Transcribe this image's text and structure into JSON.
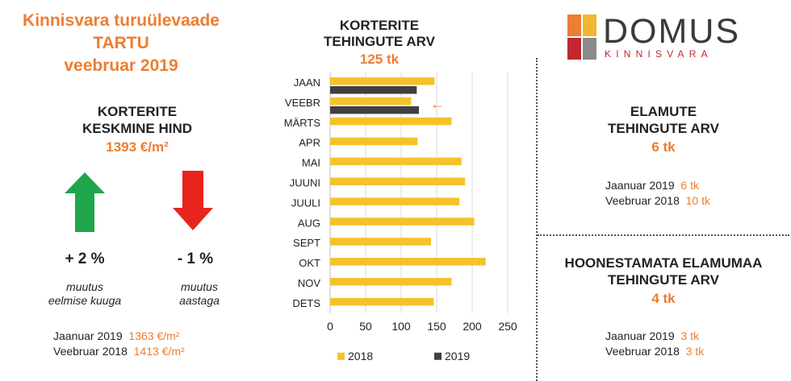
{
  "header": {
    "line1": "Kinnisvara turuülevaade",
    "line2": "TARTU",
    "line3": "veebruar 2019"
  },
  "avg_price": {
    "title_line1": "KORTERITE",
    "title_line2": "KESKMINE HIND",
    "value": "1393 €/m²",
    "monthly_change": "+ 2 %",
    "monthly_label_line1": "muutus",
    "monthly_label_line2": "eelmise kuuga",
    "yearly_change": "- 1 %",
    "yearly_label_line1": "muutus",
    "yearly_label_line2": "aastaga",
    "ref1_label": "Jaanuar 2019",
    "ref1_value": "1363 €/m²",
    "ref2_label": "Veebruar 2018",
    "ref2_value": "1413 €/m²",
    "colors": {
      "up": "#1fa64a",
      "down": "#e8251c"
    }
  },
  "apartments": {
    "title_line1": "KORTERITE",
    "title_line2": "TEHINGUTE ARV",
    "value": "125 tk"
  },
  "logo": {
    "name": "DOMUS",
    "sub": "KINNISVARA",
    "colors": [
      "#ed7d31",
      "#f2b632",
      "#c0282e",
      "#8a8a8a"
    ]
  },
  "houses": {
    "title_line1": "ELAMUTE",
    "title_line2": "TEHINGUTE ARV",
    "value": "6 tk",
    "ref1_label": "Jaanuar 2019",
    "ref1_value": "6 tk",
    "ref2_label": "Veebruar 2018",
    "ref2_value": "10 tk"
  },
  "land": {
    "title_line1": "HOONESTAMATA ELAMUMAA",
    "title_line2": "TEHINGUTE ARV",
    "value": "4 tk",
    "ref1_label": "Jaanuar 2019",
    "ref1_value": "3 tk",
    "ref2_label": "Veebruar 2018",
    "ref2_value": "3 tk"
  },
  "chart_data": {
    "type": "bar",
    "orientation": "horizontal",
    "categories": [
      "JAAN",
      "VEEBR",
      "MÄRTS",
      "APR",
      "MAI",
      "JUUNI",
      "JUULI",
      "AUG",
      "SEPT",
      "OKT",
      "NOV",
      "DETS"
    ],
    "series": [
      {
        "name": "2018",
        "color": "#f5c22b",
        "values": [
          147,
          114,
          171,
          123,
          185,
          190,
          182,
          203,
          142,
          219,
          171,
          146
        ]
      },
      {
        "name": "2019",
        "color": "#404040",
        "values": [
          122,
          125,
          null,
          null,
          null,
          null,
          null,
          null,
          null,
          null,
          null,
          null
        ]
      }
    ],
    "xlim": [
      0,
      250
    ],
    "xticks": [
      0,
      50,
      100,
      150,
      200,
      250
    ],
    "grid": true,
    "legend_position": "bottom",
    "annotation": {
      "symbol": "←",
      "category": "VEEBR",
      "color": "#ed7d31"
    }
  }
}
